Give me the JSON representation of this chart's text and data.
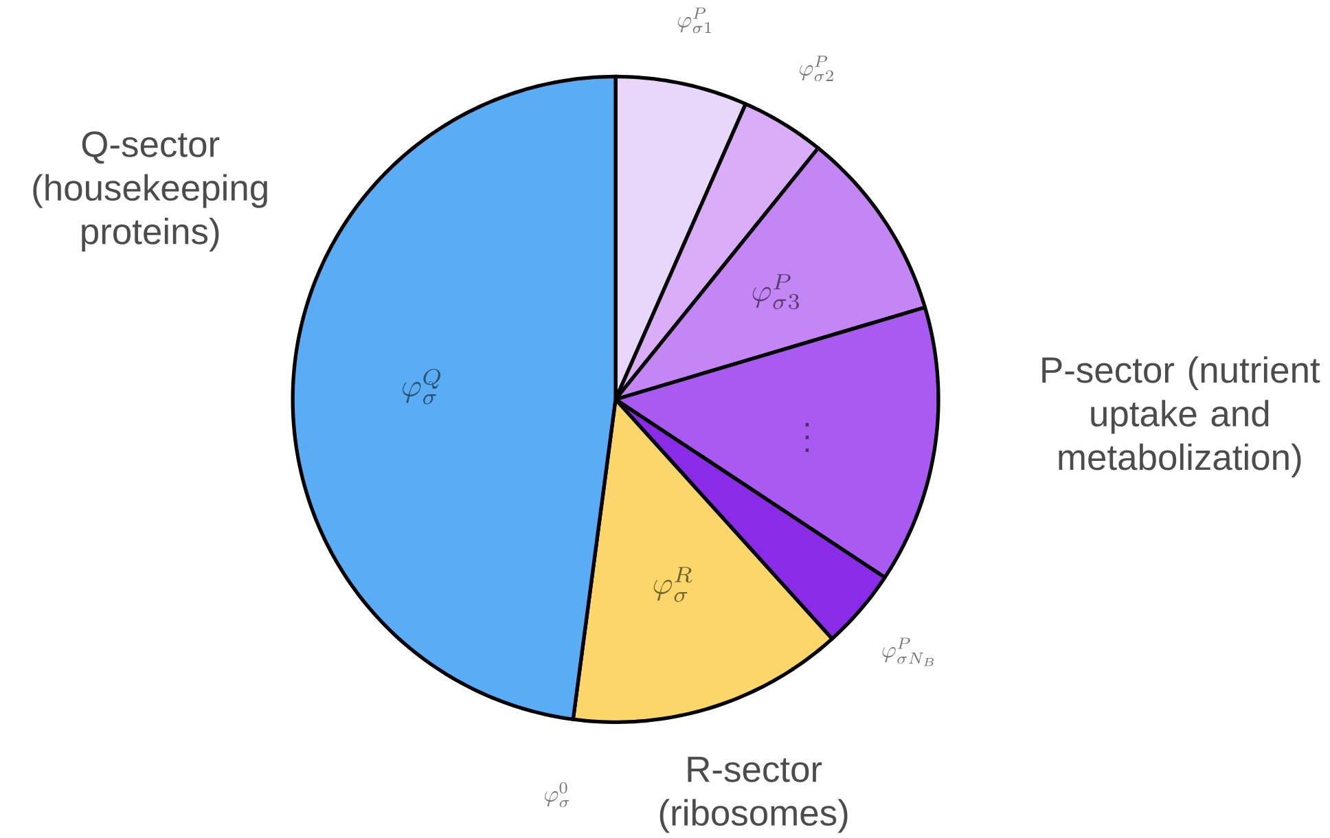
{
  "chart_data": {
    "type": "pie",
    "categories": [
      "\\varphi_{\\sigma 1}^P",
      "\\varphi_{\\sigma 2}^P",
      "\\varphi_{\\sigma 3}^P",
      "\\vdots",
      "\\varphi_{\\sigma N_B}^P",
      "\\varphi_\\sigma^R",
      "\\varphi_\\sigma^Q"
    ],
    "values": [
      6.6,
      4.2,
      9.6,
      13.9,
      4.0,
      13.8,
      47.9
    ],
    "colors": [
      "#e8d6fb",
      "#d9adf8",
      "#c586f5",
      "#a95af0",
      "#8a2be8",
      "#fbd66a",
      "#5aacf5"
    ],
    "annotations": [
      "Q-sector (housekeeping proteins)",
      "P-sector (nutrient uptake and metabolization)",
      "R-sector (ribosomes)",
      "\\varphi_\\sigma^0"
    ]
  }
}
